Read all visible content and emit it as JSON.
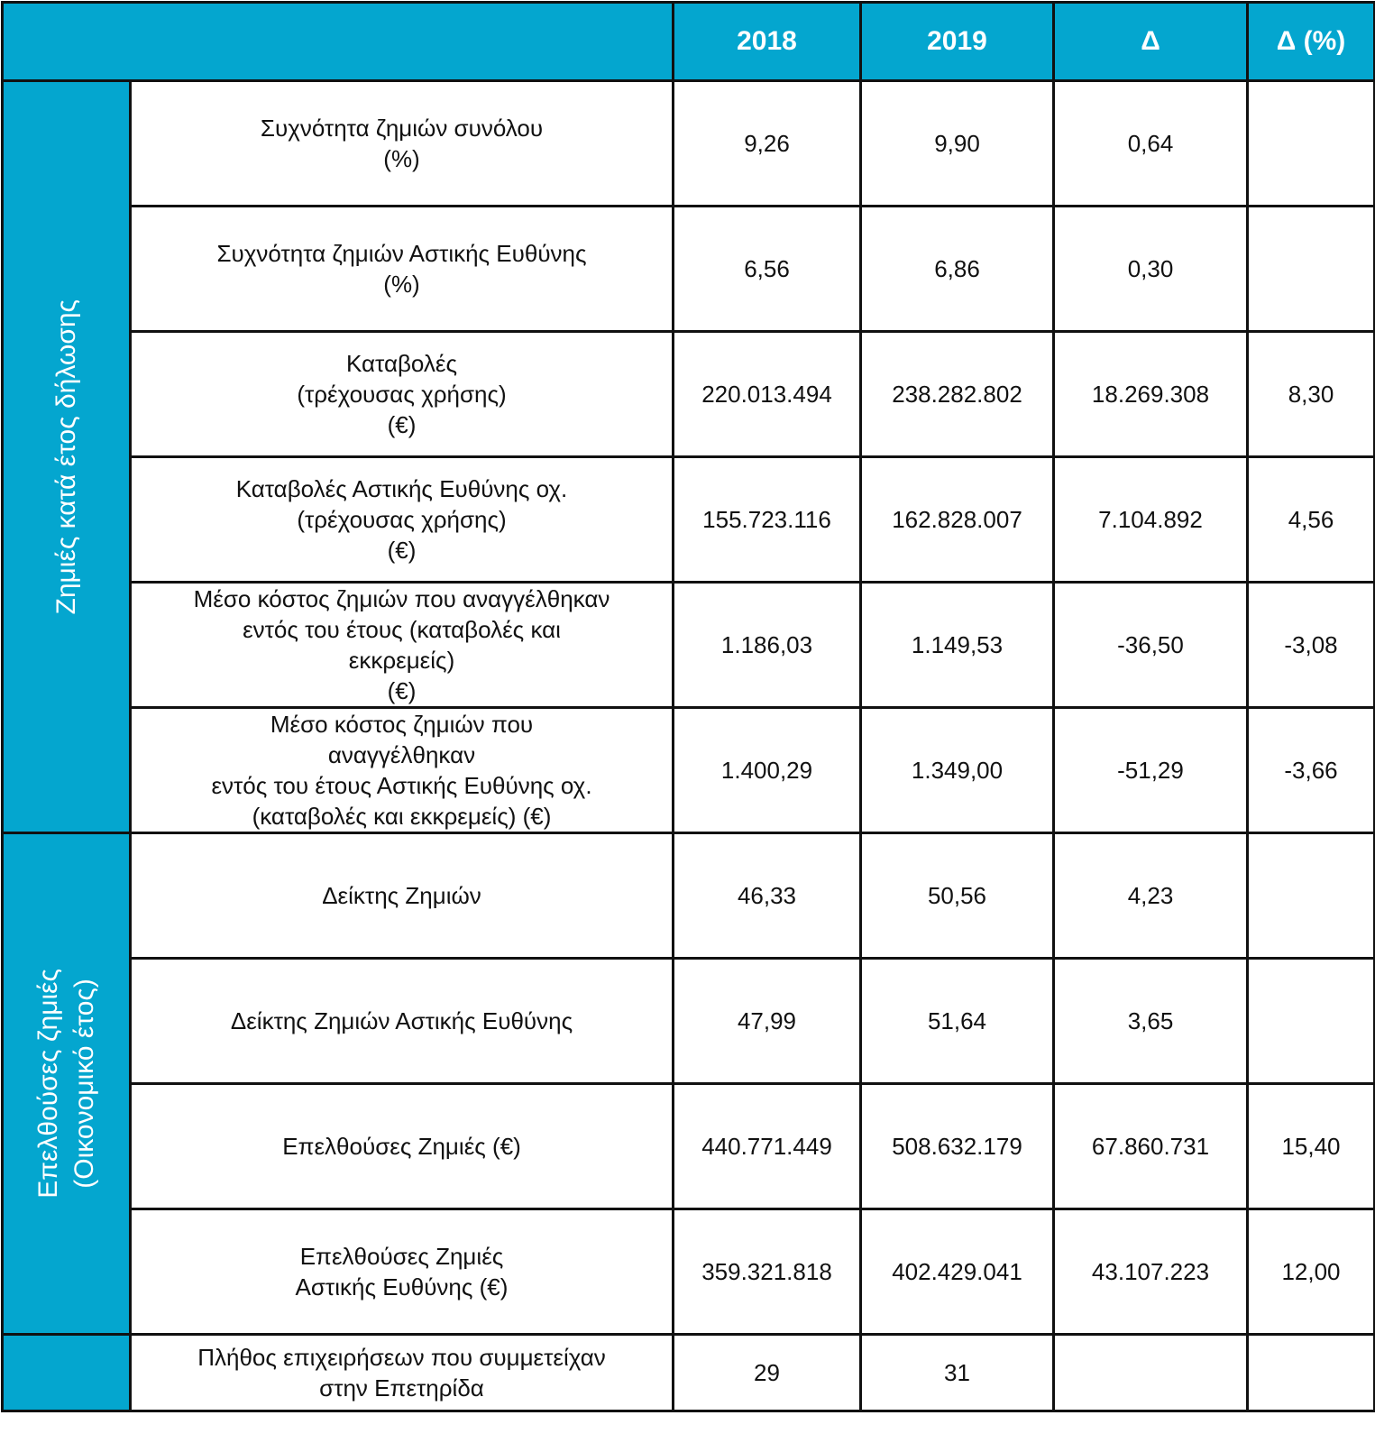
{
  "header": {
    "columns": [
      "2018",
      "2019",
      "Δ",
      "Δ (%)"
    ]
  },
  "groups": [
    {
      "label": "Ζημιές κατά έτος δήλωσης",
      "rows": [
        {
          "label": "Συχνότητα ζημιών συνόλου\n(%)",
          "values": [
            "9,26",
            "9,90",
            "0,64",
            null
          ]
        },
        {
          "label": "Συχνότητα ζημιών Αστικής Ευθύνης\n(%)",
          "values": [
            "6,56",
            "6,86",
            "0,30",
            null
          ]
        },
        {
          "label": "Καταβολές\n(τρέχουσας χρήσης)\n(€)",
          "values": [
            "220.013.494",
            "238.282.802",
            "18.269.308",
            "8,30"
          ]
        },
        {
          "label": "Καταβολές Αστικής Ευθύνης οχ.\n(τρέχουσας χρήσης)\n(€)",
          "values": [
            "155.723.116",
            "162.828.007",
            "7.104.892",
            "4,56"
          ]
        },
        {
          "label": "Μέσο κόστος ζημιών που αναγγέλθηκαν\nεντός του έτους (καταβολές και\nεκκρεμείς)\n(€)",
          "values": [
            "1.186,03",
            "1.149,53",
            "-36,50",
            "-3,08"
          ]
        },
        {
          "label": "Μέσο κόστος ζημιών που\nαναγγέλθηκαν\nεντός του έτους Αστικής Ευθύνης οχ.\n(καταβολές και εκκρεμείς)  (€)",
          "values": [
            "1.400,29",
            "1.349,00",
            "-51,29",
            "-3,66"
          ]
        }
      ]
    },
    {
      "label": "Επελθούσες ζημιές\n(Οικονομικό έτος)",
      "rows": [
        {
          "label": "Δείκτης Ζημιών",
          "values": [
            "46,33",
            "50,56",
            "4,23",
            null
          ]
        },
        {
          "label": "Δείκτης Ζημιών Αστικής Ευθύνης",
          "values": [
            "47,99",
            "51,64",
            "3,65",
            null
          ]
        },
        {
          "label": "Επελθούσες Ζημιές (€)",
          "values": [
            "440.771.449",
            "508.632.179",
            "67.860.731",
            "15,40"
          ]
        },
        {
          "label": "Επελθούσες Ζημιές\nΑστικής Ευθύνης  (€)",
          "values": [
            "359.321.818",
            "402.429.041",
            "43.107.223",
            "12,00"
          ]
        }
      ]
    },
    {
      "rows": [
        {
          "label": "Πλήθος επιχειρήσεων που συμμετείχαν\nστην Επετηρίδα",
          "values": [
            "29",
            "31",
            null,
            null
          ]
        }
      ]
    }
  ]
}
